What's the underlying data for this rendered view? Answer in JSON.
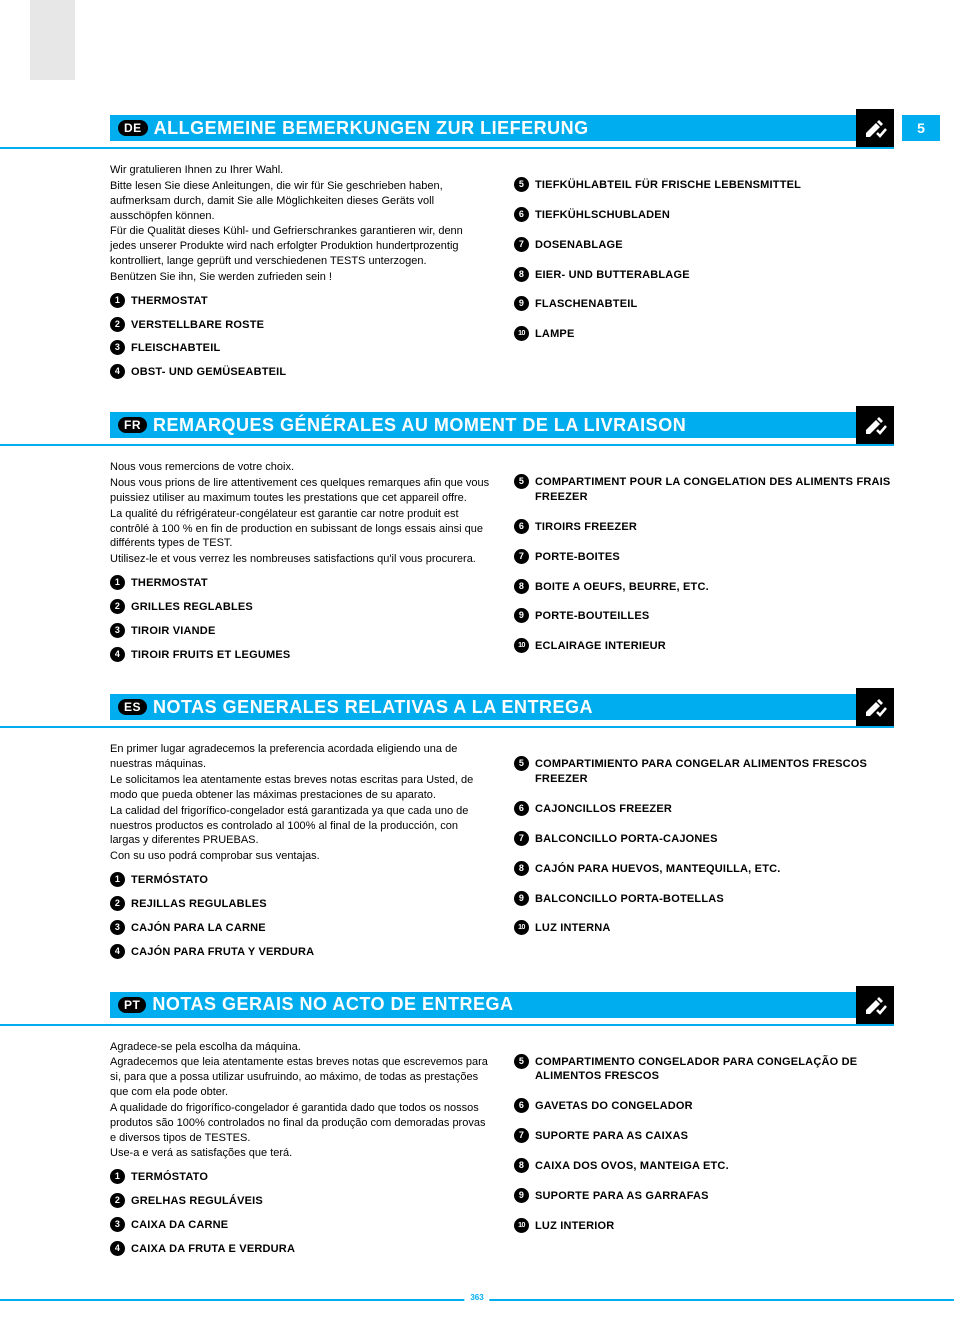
{
  "page_number": "5",
  "footer_page": "363",
  "colors": {
    "accent": "#00aeef",
    "black": "#000000",
    "grey": "#e7e7e7",
    "white": "#ffffff"
  },
  "sections": [
    {
      "lang": "DE",
      "title": "ALLGEMEINE BEMERKUNGEN ZUR LIEFERUNG",
      "show_page_num": true,
      "intro": [
        "Wir gratulieren Ihnen zu Ihrer Wahl.",
        "Bitte lesen Sie diese Anleitungen, die wir für Sie geschrieben haben, aufmerksam durch, damit Sie alle Möglichkeiten dieses Geräts voll ausschöpfen können.",
        "Für die Qualität dieses Kühl- und Gefrierschrankes garantieren wir, denn jedes unserer Produkte wird nach erfolgter Produktion hundertprozentig kontrolliert, lange geprüft und verschiedenen TESTS unterzogen.",
        "Benützen Sie ihn, Sie werden zufrieden sein !"
      ],
      "left": [
        {
          "n": "1",
          "label": "THERMOSTAT"
        },
        {
          "n": "2",
          "label": "VERSTELLBARE ROSTE"
        },
        {
          "n": "3",
          "label": "FLEISCHABTEIL"
        },
        {
          "n": "4",
          "label": "OBST- UND GEMÜSEABTEIL"
        }
      ],
      "right": [
        {
          "n": "5",
          "label": "TIEFKÜHLABTEIL FÜR FRISCHE LEBENSMITTEL"
        },
        {
          "n": "6",
          "label": "TIEFKÜHLSCHUBLADEN"
        },
        {
          "n": "7",
          "label": "DOSENABLAGE"
        },
        {
          "n": "8",
          "label": "EIER- UND BUTTERABLAGE"
        },
        {
          "n": "9",
          "label": "FLASCHENABTEIL"
        },
        {
          "n": "10",
          "label": "LAMPE"
        }
      ]
    },
    {
      "lang": "FR",
      "title": "REMARQUES GÉNÉRALES AU MOMENT DE LA LIVRAISON",
      "intro": [
        "Nous vous remercions de votre choix.",
        "Nous vous prions de lire attentivement ces quelques remarques afin que vous puissiez utiliser au maximum toutes les prestations que cet appareil offre.",
        "La qualité du réfrigérateur-congélateur est garantie car notre produit est contrôlé à 100 % en fin de production en subissant de longs essais ainsi que différents types de TEST.",
        "Utilisez-le et vous verrez les nombreuses satisfactions qu'il vous procurera."
      ],
      "left": [
        {
          "n": "1",
          "label": "THERMOSTAT"
        },
        {
          "n": "2",
          "label": "GRILLES REGLABLES"
        },
        {
          "n": "3",
          "label": "TIROIR VIANDE"
        },
        {
          "n": "4",
          "label": "TIROIR FRUITS ET LEGUMES"
        }
      ],
      "right": [
        {
          "n": "5",
          "label": "COMPARTIMENT POUR LA CONGELATION DES ALIMENTS FRAIS FREEZER"
        },
        {
          "n": "6",
          "label": "TIROIRS FREEZER"
        },
        {
          "n": "7",
          "label": "PORTE-BOITES"
        },
        {
          "n": "8",
          "label": "BOITE A OEUFS, BEURRE, ETC."
        },
        {
          "n": "9",
          "label": "PORTE-BOUTEILLES"
        },
        {
          "n": "10",
          "label": "ECLAIRAGE INTERIEUR"
        }
      ]
    },
    {
      "lang": "ES",
      "title": "NOTAS GENERALES RELATIVAS A LA ENTREGA",
      "intro": [
        "En primer lugar agradecemos la preferencia acordada eligiendo una de nuestras máquinas.",
        "Le solicitamos lea atentamente estas breves notas escritas para Usted, de modo que pueda obtener las máximas prestaciones de su aparato.",
        "La calidad del frigorífico-congelador está garantizada ya que cada uno de nuestros productos es controlado al 100% al final de la producción, con largas y diferentes PRUEBAS.",
        "Con su uso podrá comprobar sus ventajas."
      ],
      "left": [
        {
          "n": "1",
          "label": "TERMÓSTATO"
        },
        {
          "n": "2",
          "label": "REJILLAS REGULABLES"
        },
        {
          "n": "3",
          "label": "CAJÓN PARA LA CARNE"
        },
        {
          "n": "4",
          "label": "CAJÓN PARA FRUTA Y VERDURA"
        }
      ],
      "right": [
        {
          "n": "5",
          "label": "COMPARTIMIENTO PARA CONGELAR ALIMENTOS FRESCOS FREEZER"
        },
        {
          "n": "6",
          "label": "CAJONCILLOS FREEZER"
        },
        {
          "n": "7",
          "label": "BALCONCILLO PORTA-CAJONES"
        },
        {
          "n": "8",
          "label": "CAJÓN PARA HUEVOS, MANTEQUILLA, ETC."
        },
        {
          "n": "9",
          "label": "BALCONCILLO PORTA-BOTELLAS"
        },
        {
          "n": "10",
          "label": "LUZ INTERNA"
        }
      ]
    },
    {
      "lang": "PT",
      "title": "NOTAS GERAIS NO ACTO DE ENTREGA",
      "intro": [
        "Agradece-se pela escolha da máquina.",
        "Agradecemos que leia atentamente estas breves notas que escrevemos para si, para que a possa utilizar usufruindo, ao máximo, de todas as prestações que com ela pode obter.",
        "A qualidade do frigorífico-congelador é garantida dado que todos os nossos produtos são 100% controlados no final da produção com demoradas provas e diversos tipos de TESTES.",
        "Use-a e verá as satisfações que terá."
      ],
      "left": [
        {
          "n": "1",
          "label": "TERMÓSTATO"
        },
        {
          "n": "2",
          "label": "GRELHAS REGULÁVEIS"
        },
        {
          "n": "3",
          "label": "CAIXA DA CARNE"
        },
        {
          "n": "4",
          "label": "CAIXA DA FRUTA E VERDURA"
        }
      ],
      "right": [
        {
          "n": "5",
          "label": "COMPARTIMENTO CONGELADOR PARA CONGELAÇÃO DE ALIMENTOS FRESCOS"
        },
        {
          "n": "6",
          "label": "GAVETAS DO CONGELADOR"
        },
        {
          "n": "7",
          "label": "SUPORTE PARA AS CAIXAS"
        },
        {
          "n": "8",
          "label": "CAIXA DOS OVOS, MANTEIGA ETC."
        },
        {
          "n": "9",
          "label": "SUPORTE PARA AS GARRAFAS"
        },
        {
          "n": "10",
          "label": "LUZ INTERIOR"
        }
      ]
    }
  ]
}
